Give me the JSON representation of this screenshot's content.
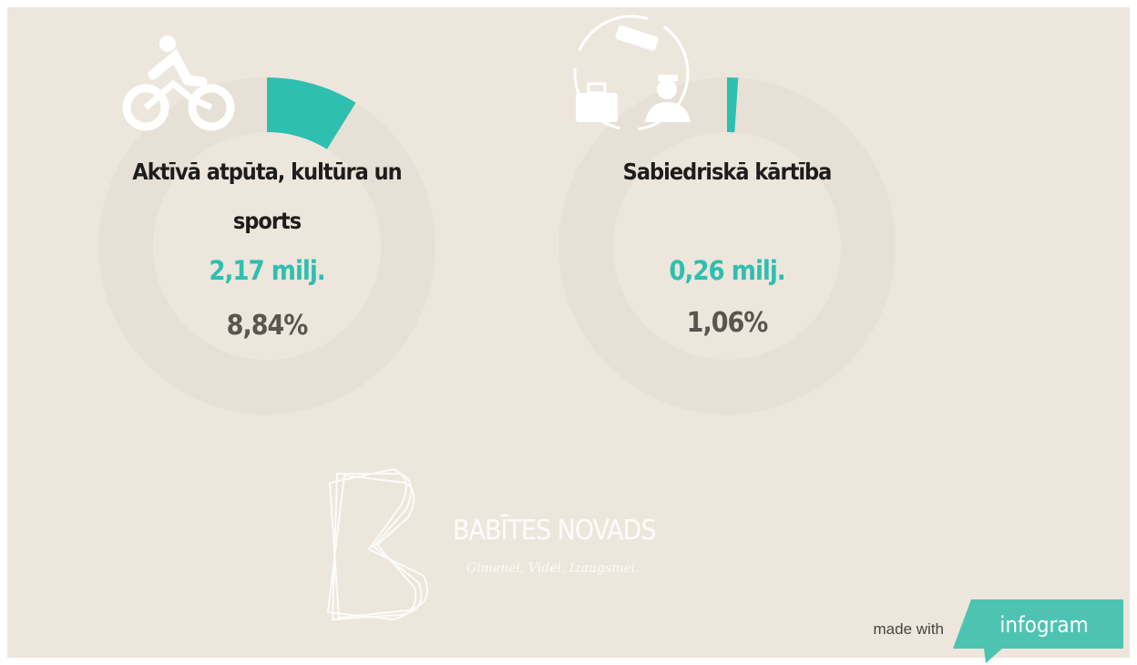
{
  "chart_data": [
    {
      "type": "donut",
      "title": "Aktīvā atpūta, kultūra un sports",
      "amount_label": "2,17 milj.",
      "values": [
        8.84
      ],
      "value_labels": [
        "8,84%"
      ],
      "color": "#2ebfb0"
    },
    {
      "type": "donut",
      "title": "Sabiedriskā kārtība",
      "amount_label": "0,26 milj.",
      "values": [
        1.06
      ],
      "value_labels": [
        "1,06%"
      ],
      "color": "#2ebfb0"
    }
  ],
  "logo": {
    "name": "BABĪTES NOVADS",
    "slogan": "Ģimenei. Videi. Izaugsmei."
  },
  "footer": {
    "made_with": "made with",
    "brand": "infogram"
  }
}
